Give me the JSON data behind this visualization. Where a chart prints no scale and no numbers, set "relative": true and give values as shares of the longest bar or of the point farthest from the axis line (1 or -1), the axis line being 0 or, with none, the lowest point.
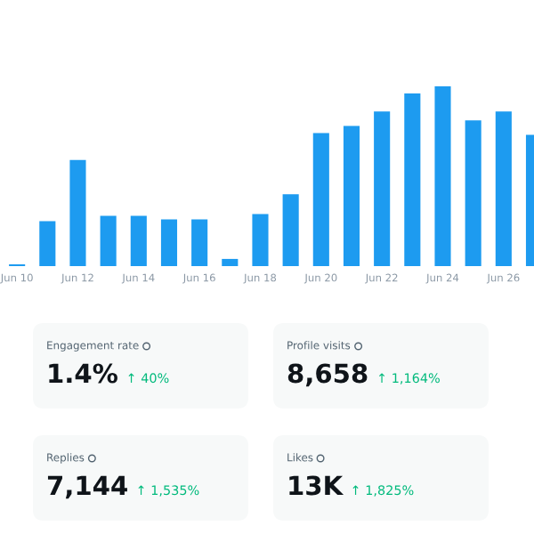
{
  "chart_data": [
    {
      "type": "bar",
      "relative": true,
      "color": "#1d9bf0",
      "categories": [
        "Jun 10",
        null,
        "Jun 12",
        null,
        "Jun 14",
        null,
        "Jun 16",
        null,
        "Jun 18",
        null,
        "Jun 20",
        null,
        "Jun 22",
        null,
        "Jun 24",
        null,
        "Jun 26",
        null
      ],
      "values": [
        0.01,
        0.25,
        0.59,
        0.28,
        0.28,
        0.26,
        0.26,
        0.04,
        0.29,
        0.4,
        0.74,
        0.78,
        0.86,
        0.96,
        1,
        0.81,
        0.86,
        0.73
      ]
    },
    {
      "type": "other",
      "annotations": [
        "Engagement rate",
        "1.4%",
        "↑ 40%",
        "Profile visits",
        "8,658",
        "↑ 1,164%",
        "Replies",
        "7,144",
        "↑ 1,535%",
        "Likes",
        "13K",
        "↑ 1,825%"
      ]
    }
  ]
}
